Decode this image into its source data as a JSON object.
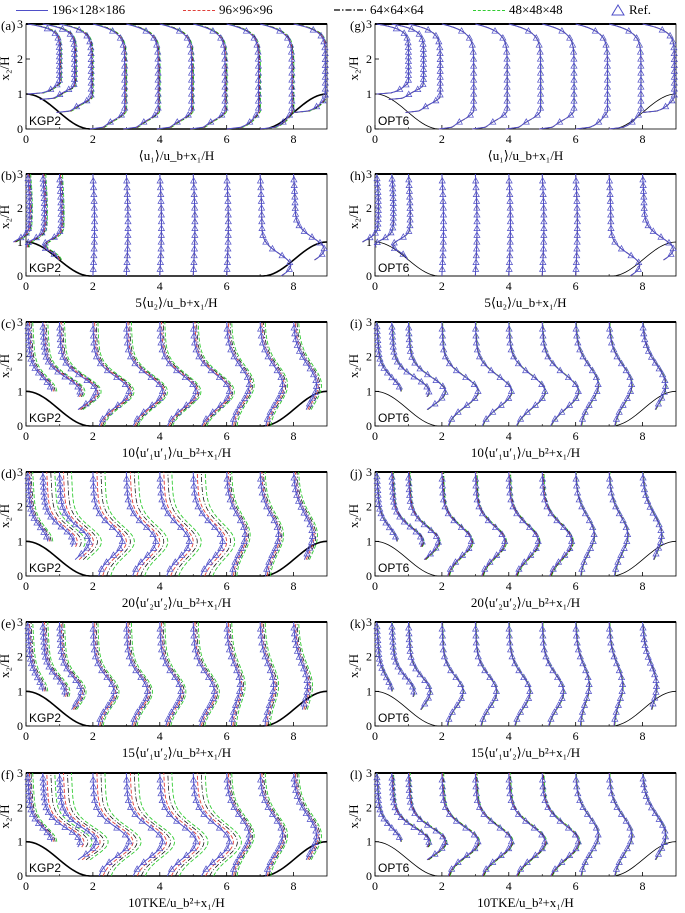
{
  "legend": {
    "items": [
      {
        "label": "196×128×186",
        "color": "#4f4fc8",
        "dash": "solid"
      },
      {
        "label": "96×96×96",
        "color": "#e0403a",
        "dash": "dashed"
      },
      {
        "label": "64×64×64",
        "color": "#000000",
        "dash": "dashdot"
      },
      {
        "label": "48×48×48",
        "color": "#33cc33",
        "dash": "dashed"
      },
      {
        "label": "Ref.",
        "color": "#4f4fc8",
        "dash": "triangle"
      }
    ]
  },
  "chart_data": [
    {
      "type": "line",
      "panel": "(a)",
      "scheme": "KGP2",
      "xlabel": "⟨u₁⟩/u_b+x₁/H",
      "ylabel": "x₂/H",
      "xlim": [
        0,
        9
      ],
      "ylim": [
        0,
        3
      ],
      "xticks": [
        0,
        2,
        4,
        6,
        8
      ],
      "yticks": [
        0,
        1,
        2,
        3
      ],
      "stations_x1": [
        0.05,
        0.5,
        1,
        2,
        3,
        4,
        5,
        6,
        7,
        8
      ],
      "quantity": "u1"
    },
    {
      "type": "line",
      "panel": "(b)",
      "scheme": "KGP2",
      "xlabel": "5⟨u₂⟩/u_b+x₁/H",
      "ylabel": "x₂/H",
      "xlim": [
        0,
        9
      ],
      "ylim": [
        0,
        3
      ],
      "xticks": [
        0,
        2,
        4,
        6,
        8
      ],
      "yticks": [
        0,
        1,
        2,
        3
      ],
      "stations_x1": [
        0.05,
        0.5,
        1,
        2,
        3,
        4,
        5,
        6,
        7,
        8
      ],
      "quantity": "u2"
    },
    {
      "type": "line",
      "panel": "(c)",
      "scheme": "KGP2",
      "xlabel": "10⟨u′₁u′₁⟩/u_b²+x₁/H",
      "ylabel": "x₂/H",
      "xlim": [
        0,
        9
      ],
      "ylim": [
        0,
        3
      ],
      "xticks": [
        0,
        2,
        4,
        6,
        8
      ],
      "yticks": [
        0,
        1,
        2,
        3
      ],
      "stations_x1": [
        0.05,
        0.5,
        1,
        2,
        3,
        4,
        5,
        6,
        7,
        8
      ],
      "quantity": "uu"
    },
    {
      "type": "line",
      "panel": "(d)",
      "scheme": "KGP2",
      "xlabel": "20⟨u′₂u′₂⟩/u_b²+x₁/H",
      "ylabel": "x₂/H",
      "xlim": [
        0,
        9
      ],
      "ylim": [
        0,
        3
      ],
      "xticks": [
        0,
        2,
        4,
        6,
        8
      ],
      "yticks": [
        0,
        1,
        2,
        3
      ],
      "stations_x1": [
        0.05,
        0.5,
        1,
        2,
        3,
        4,
        5,
        6,
        7,
        8
      ],
      "quantity": "vv"
    },
    {
      "type": "line",
      "panel": "(e)",
      "scheme": "KGP2",
      "xlabel": "15⟨u′₁u′₂⟩/u_b²+x₁/H",
      "ylabel": "x₂/H",
      "xlim": [
        0,
        9
      ],
      "ylim": [
        0,
        3
      ],
      "xticks": [
        0,
        2,
        4,
        6,
        8
      ],
      "yticks": [
        0,
        1,
        2,
        3
      ],
      "stations_x1": [
        0.05,
        0.5,
        1,
        2,
        3,
        4,
        5,
        6,
        7,
        8
      ],
      "quantity": "uv"
    },
    {
      "type": "line",
      "panel": "(f)",
      "scheme": "KGP2",
      "xlabel": "10TKE/u_b²+x₁/H",
      "ylabel": "x₂/H",
      "xlim": [
        0,
        9
      ],
      "ylim": [
        0,
        3
      ],
      "xticks": [
        0,
        2,
        4,
        6,
        8
      ],
      "yticks": [
        0,
        1,
        2,
        3
      ],
      "stations_x1": [
        0.05,
        0.5,
        1,
        2,
        3,
        4,
        5,
        6,
        7,
        8
      ],
      "quantity": "tke"
    },
    {
      "type": "line",
      "panel": "(g)",
      "scheme": "OPT6",
      "xlabel": "⟨u₁⟩/u_b+x₁/H",
      "ylabel": "x₂/H",
      "xlim": [
        0,
        9
      ],
      "ylim": [
        0,
        3
      ],
      "xticks": [
        0,
        2,
        4,
        6,
        8
      ],
      "yticks": [
        0,
        1,
        2,
        3
      ],
      "stations_x1": [
        0.05,
        0.5,
        1,
        2,
        3,
        4,
        5,
        6,
        7,
        8
      ],
      "quantity": "u1"
    },
    {
      "type": "line",
      "panel": "(h)",
      "scheme": "OPT6",
      "xlabel": "5⟨u₂⟩/u_b+x₁/H",
      "ylabel": "x₂/H",
      "xlim": [
        0,
        9
      ],
      "ylim": [
        0,
        3
      ],
      "xticks": [
        0,
        2,
        4,
        6,
        8
      ],
      "yticks": [
        0,
        1,
        2,
        3
      ],
      "stations_x1": [
        0.05,
        0.5,
        1,
        2,
        3,
        4,
        5,
        6,
        7,
        8
      ],
      "quantity": "u2"
    },
    {
      "type": "line",
      "panel": "(i)",
      "scheme": "OPT6",
      "xlabel": "10⟨u′₁u′₁⟩/u_b²+x₁/H",
      "ylabel": "x₂/H",
      "xlim": [
        0,
        9
      ],
      "ylim": [
        0,
        3
      ],
      "xticks": [
        0,
        2,
        4,
        6,
        8
      ],
      "yticks": [
        0,
        1,
        2,
        3
      ],
      "stations_x1": [
        0.05,
        0.5,
        1,
        2,
        3,
        4,
        5,
        6,
        7,
        8
      ],
      "quantity": "uu"
    },
    {
      "type": "line",
      "panel": "(j)",
      "scheme": "OPT6",
      "xlabel": "20⟨u′₂u′₂⟩/u_b²+x₁/H",
      "ylabel": "x₂/H",
      "xlim": [
        0,
        9
      ],
      "ylim": [
        0,
        3
      ],
      "xticks": [
        0,
        2,
        4,
        6,
        8
      ],
      "yticks": [
        0,
        1,
        2,
        3
      ],
      "stations_x1": [
        0.05,
        0.5,
        1,
        2,
        3,
        4,
        5,
        6,
        7,
        8
      ],
      "quantity": "vv"
    },
    {
      "type": "line",
      "panel": "(k)",
      "scheme": "OPT6",
      "xlabel": "15⟨u′₁u′₂⟩/u_b²+x₁/H",
      "ylabel": "x₂/H",
      "xlim": [
        0,
        9
      ],
      "ylim": [
        0,
        3
      ],
      "xticks": [
        0,
        2,
        4,
        6,
        8
      ],
      "yticks": [
        0,
        1,
        2,
        3
      ],
      "stations_x1": [
        0.05,
        0.5,
        1,
        2,
        3,
        4,
        5,
        6,
        7,
        8
      ],
      "quantity": "uv"
    },
    {
      "type": "line",
      "panel": "(l)",
      "scheme": "OPT6",
      "xlabel": "10TKE/u_b²+x₁/H",
      "ylabel": "x₂/H",
      "xlim": [
        0,
        9
      ],
      "ylim": [
        0,
        3
      ],
      "xticks": [
        0,
        2,
        4,
        6,
        8
      ],
      "yticks": [
        0,
        1,
        2,
        3
      ],
      "stations_x1": [
        0.05,
        0.5,
        1,
        2,
        3,
        4,
        5,
        6,
        7,
        8
      ],
      "quantity": "tke"
    }
  ]
}
